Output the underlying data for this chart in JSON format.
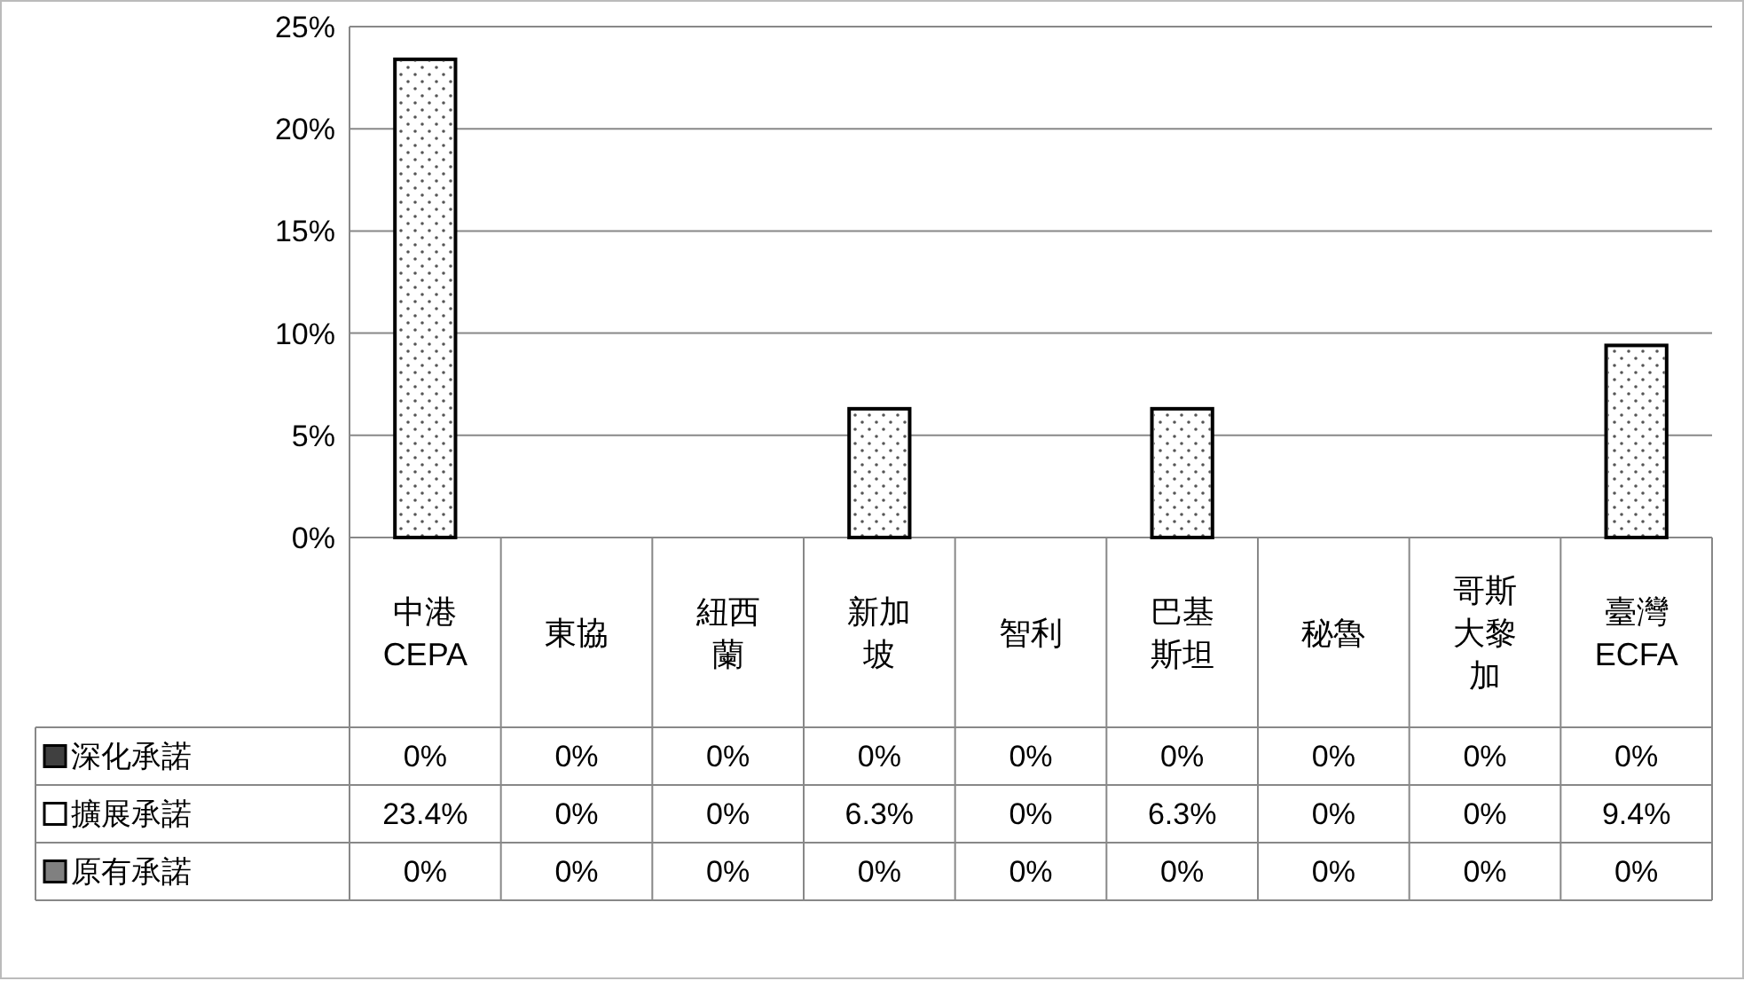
{
  "chart_data": {
    "type": "bar",
    "stacked": true,
    "categories": [
      "中港CEPA",
      "東協",
      "紐西蘭",
      "新加坡",
      "智利",
      "巴基斯坦",
      "秘魯",
      "哥斯大黎加",
      "臺灣ECFA"
    ],
    "series": [
      {
        "name": "深化承諾",
        "color": "#404040",
        "values": [
          0,
          0,
          0,
          0,
          0,
          0,
          0,
          0,
          0
        ],
        "value_labels": [
          "0%",
          "0%",
          "0%",
          "0%",
          "0%",
          "0%",
          "0%",
          "0%",
          "0%"
        ]
      },
      {
        "name": "擴展承諾",
        "color": "#ffffff",
        "values": [
          23.4,
          0,
          0,
          6.3,
          0,
          6.3,
          0,
          0,
          9.4
        ],
        "value_labels": [
          "23.4%",
          "0%",
          "0%",
          "6.3%",
          "0%",
          "6.3%",
          "0%",
          "0%",
          "9.4%"
        ]
      },
      {
        "name": "原有承諾",
        "color": "#808080",
        "values": [
          0,
          0,
          0,
          0,
          0,
          0,
          0,
          0,
          0
        ],
        "value_labels": [
          "0%",
          "0%",
          "0%",
          "0%",
          "0%",
          "0%",
          "0%",
          "0%",
          "0%"
        ]
      }
    ],
    "ylim": [
      0,
      25
    ],
    "yticks": [
      {
        "value": 0,
        "label": "0%"
      },
      {
        "value": 5,
        "label": "5%"
      },
      {
        "value": 10,
        "label": "10%"
      },
      {
        "value": 15,
        "label": "15%"
      },
      {
        "value": 20,
        "label": "20%"
      },
      {
        "value": 25,
        "label": "25%"
      }
    ],
    "grid": "y",
    "legend": "bottom"
  }
}
